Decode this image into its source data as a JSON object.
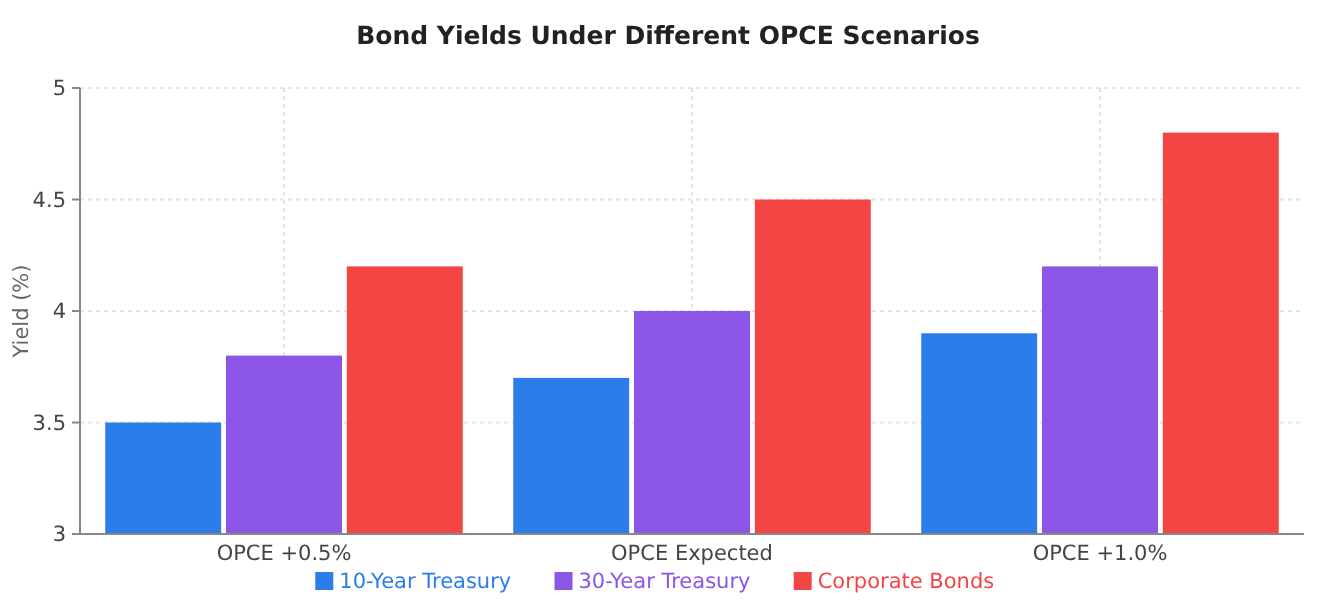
{
  "chart_data": {
    "type": "bar",
    "title": "Bond Yields Under Different OPCE Scenarios",
    "ylabel": "Yield (%)",
    "categories": [
      "OPCE +0.5%",
      "OPCE Expected",
      "OPCE +1.0%"
    ],
    "series": [
      {
        "name": "10-Year Treasury",
        "color": "#2b7de9",
        "values": [
          3.5,
          3.7,
          3.9
        ]
      },
      {
        "name": "30-Year Treasury",
        "color": "#8b55e8",
        "values": [
          3.8,
          4.0,
          4.2
        ]
      },
      {
        "name": "Corporate Bonds",
        "color": "#f44545",
        "values": [
          4.2,
          4.5,
          4.8
        ]
      }
    ],
    "ylim": [
      3,
      5
    ],
    "yticks": [
      3,
      3.5,
      4,
      4.5,
      5
    ],
    "grid": true,
    "legend": "bottom"
  }
}
